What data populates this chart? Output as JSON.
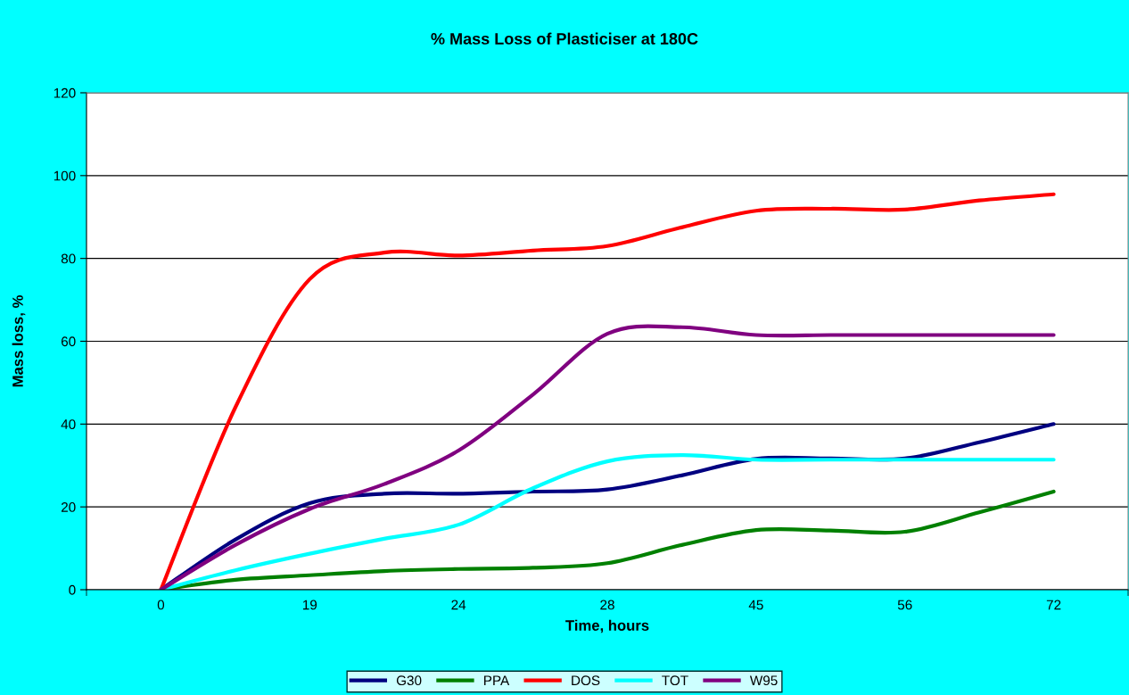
{
  "chart_data": {
    "type": "line",
    "title": "% Mass Loss of Plasticiser at 180C",
    "xlabel": "Time, hours",
    "ylabel": "Mass loss, %",
    "categories": [
      "0",
      null,
      "19",
      null,
      "24",
      null,
      "28",
      null,
      "45",
      null,
      "56",
      null,
      "72"
    ],
    "series": [
      {
        "name": "G30",
        "color": "#000080",
        "values": [
          0,
          12.1,
          20.9,
          23.2,
          23.2,
          23.7,
          24.2,
          27.6,
          31.6,
          31.7,
          31.7,
          35.6,
          40.0
        ]
      },
      {
        "name": "PPA",
        "color": "#008000",
        "values": [
          0,
          2.4,
          3.5,
          4.5,
          5.0,
          5.3,
          6.4,
          10.8,
          14.4,
          14.3,
          14.0,
          18.7,
          23.7
        ]
      },
      {
        "name": "DOS",
        "color": "#ff0000",
        "values": [
          0,
          44.0,
          75.0,
          81.4,
          80.7,
          81.9,
          83.0,
          87.5,
          91.5,
          92.0,
          91.8,
          94.0,
          95.5
        ]
      },
      {
        "name": "TOT",
        "color": "#00ffff",
        "values": [
          0,
          4.7,
          8.7,
          12.3,
          15.7,
          24.5,
          31.0,
          32.5,
          31.4,
          31.4,
          31.4,
          31.4,
          31.4
        ]
      },
      {
        "name": "W95",
        "color": "#800080",
        "values": [
          0,
          10.8,
          19.5,
          25.5,
          33.6,
          47.1,
          61.8,
          63.4,
          61.5,
          61.5,
          61.5,
          61.5,
          61.5
        ]
      }
    ],
    "ylim": [
      0,
      120
    ],
    "yticks": [
      0,
      20,
      40,
      60,
      80,
      100,
      120
    ],
    "grid": "y",
    "legend": "bottom",
    "marker": "none",
    "line_style": "solid"
  }
}
